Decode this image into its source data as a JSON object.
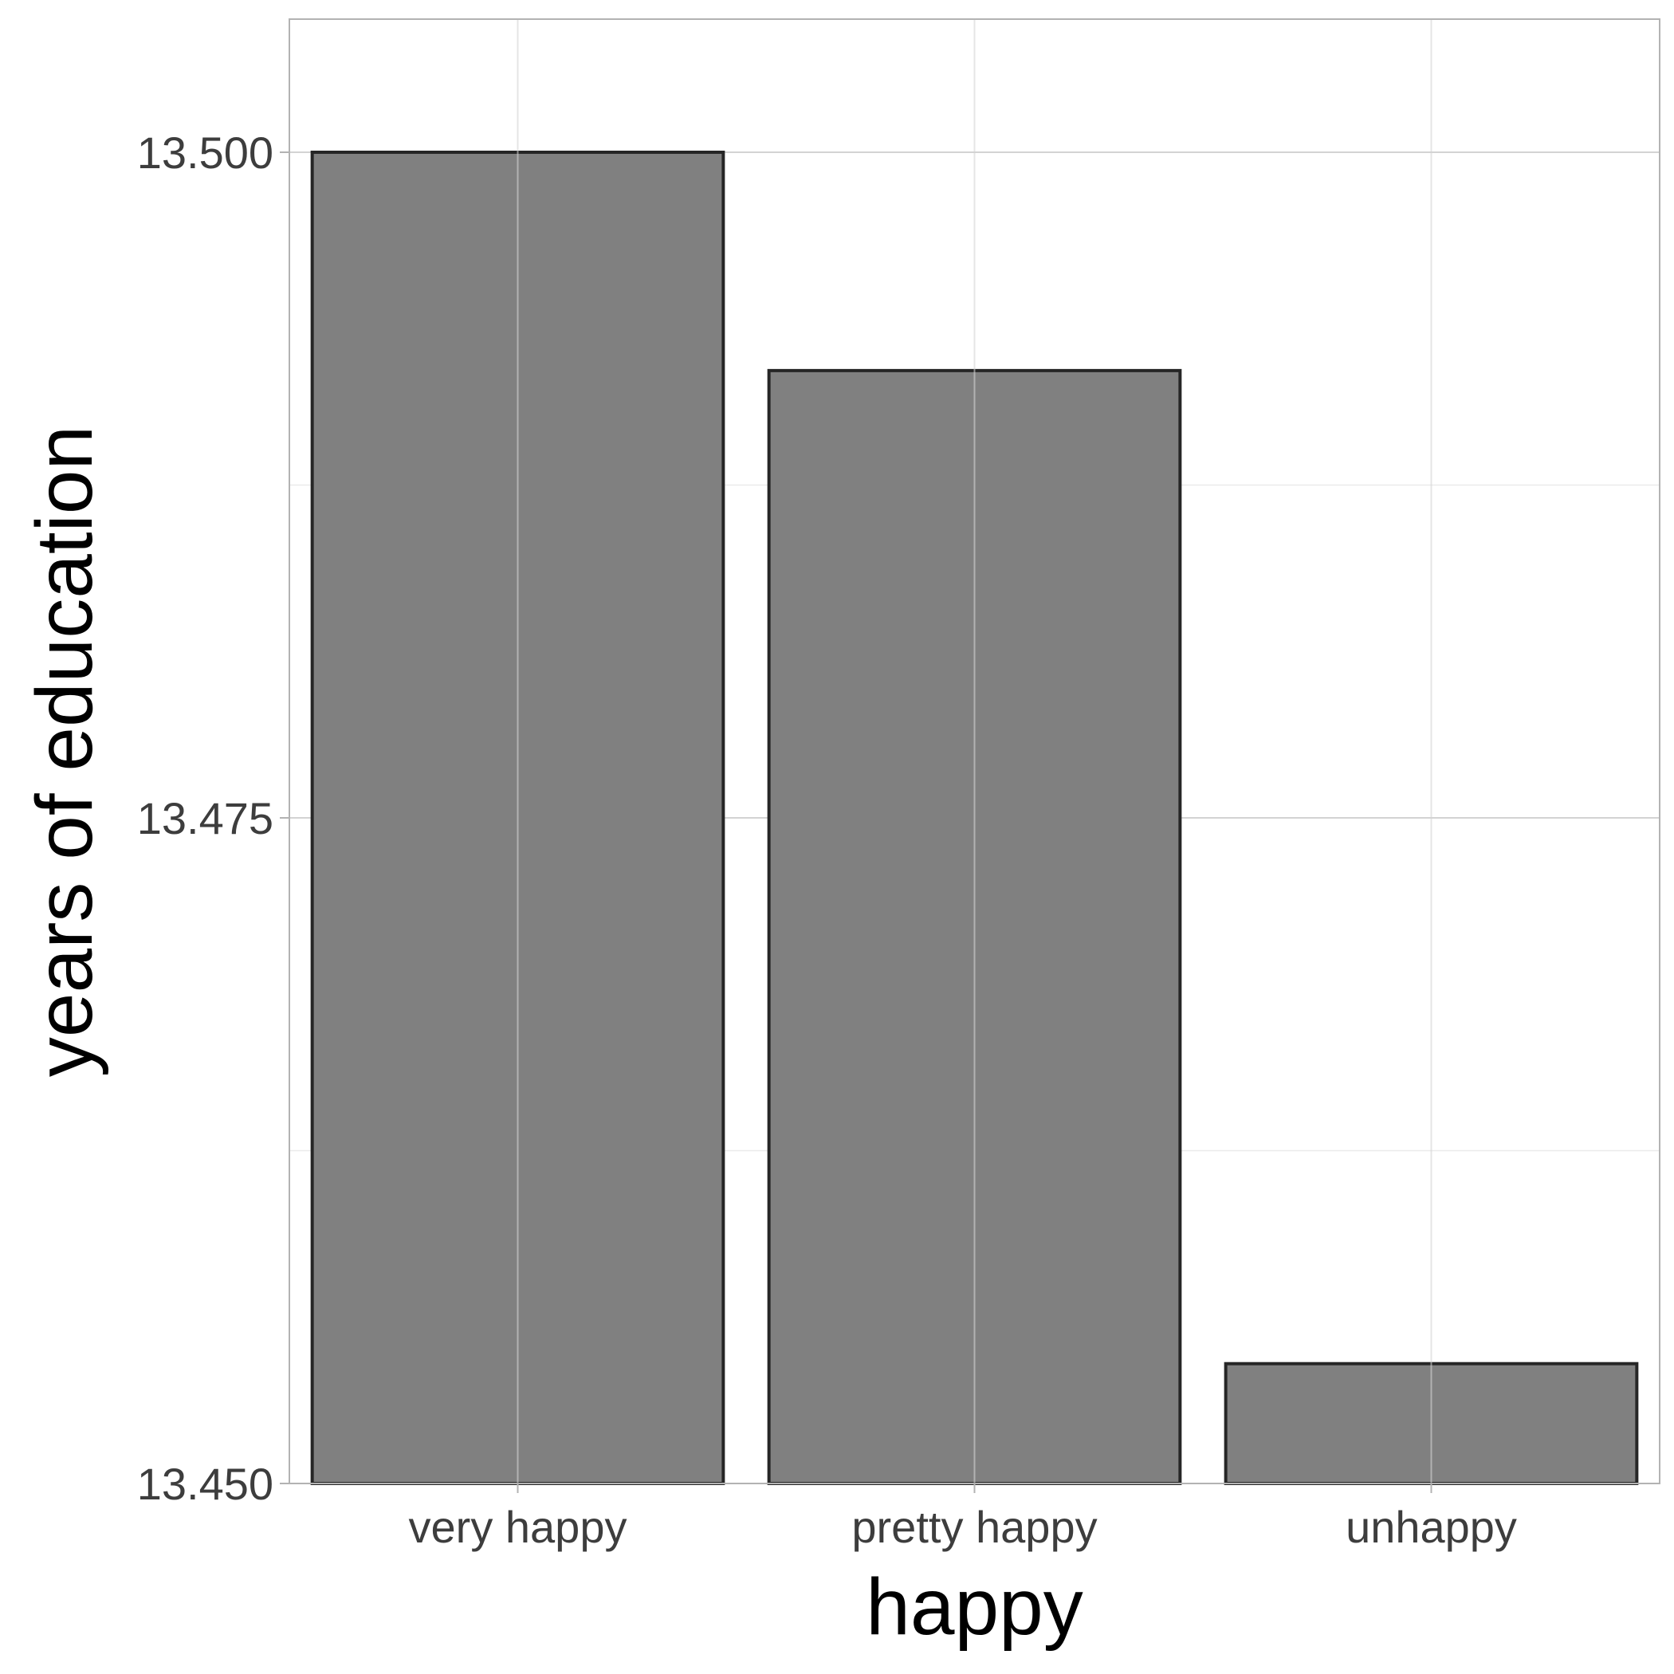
{
  "chart_data": {
    "type": "bar",
    "title": "",
    "xlabel": "happy",
    "ylabel": "years of education",
    "categories": [
      "very happy",
      "pretty happy",
      "unhappy"
    ],
    "values": [
      13.5,
      13.4918,
      13.4545
    ],
    "ylim": [
      13.45,
      13.505
    ],
    "yticks": [
      13.45,
      13.475,
      13.5
    ],
    "ytick_labels": [
      "13.450",
      "13.475",
      "13.500"
    ],
    "grid": true,
    "legend": "none"
  },
  "colors": {
    "bar_fill": "#808080",
    "bar_stroke": "#262626",
    "grid_major": "#d3d3d3",
    "grid_minor": "#ebebeb",
    "panel_border": "#b3b3b3"
  }
}
